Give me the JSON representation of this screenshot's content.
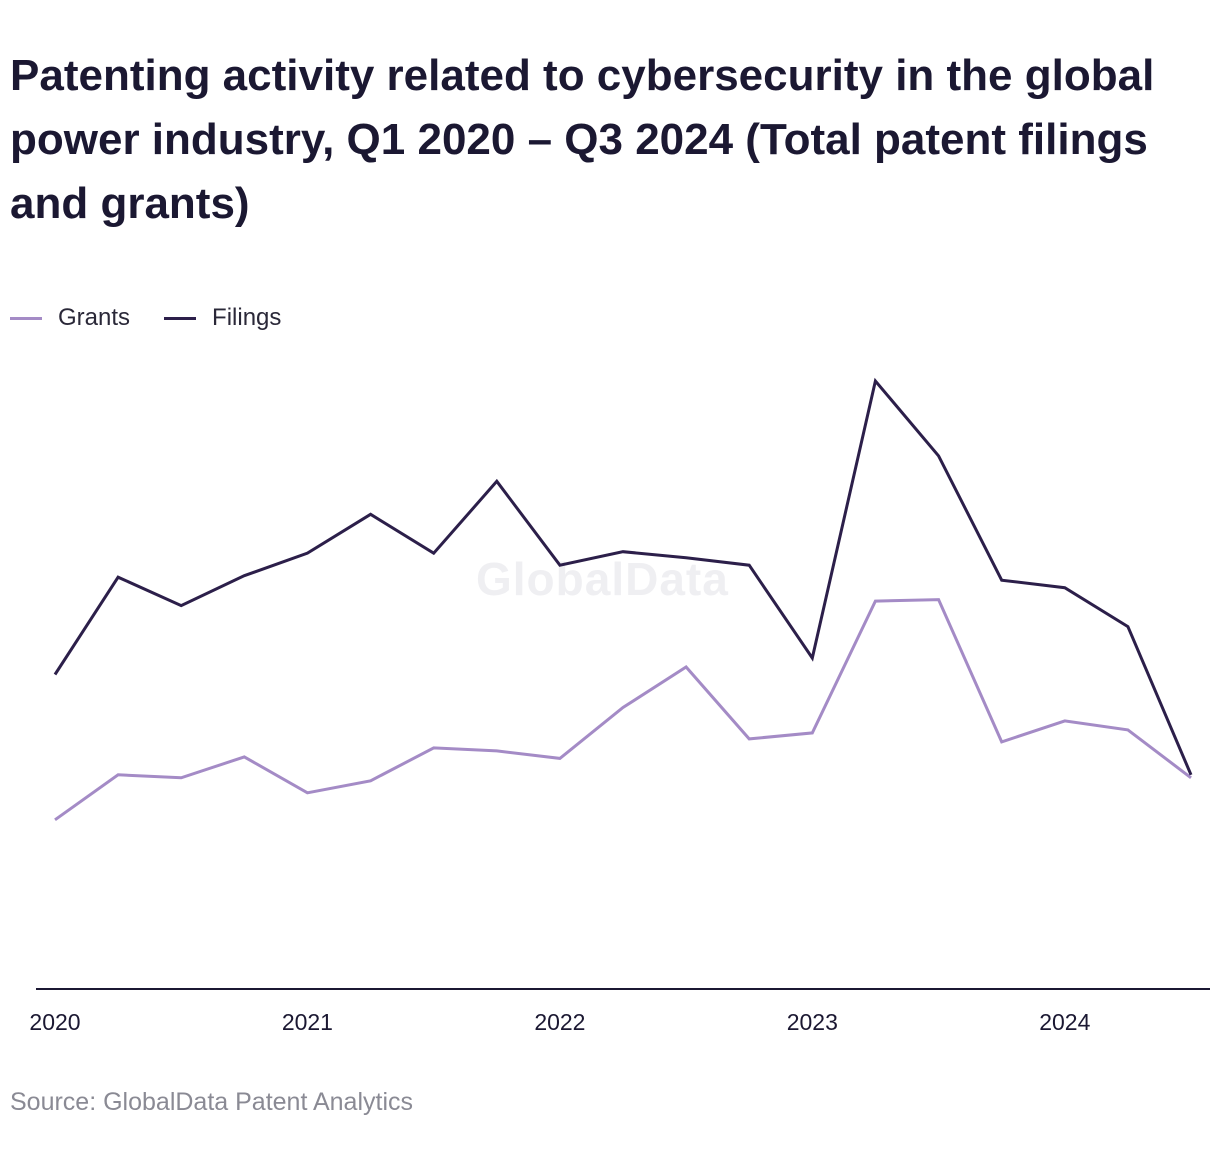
{
  "title": "Patenting activity related to cybersecurity in the global power industry, Q1 2020 – Q3 2024 (Total patent filings and grants)",
  "source": "Source: GlobalData Patent Analytics",
  "watermark": "GlobalData",
  "colors": {
    "grants": "#a48bc6",
    "filings": "#2c1f4a",
    "axis": "#1b1832",
    "text": "#1b1832"
  },
  "chart_data": {
    "type": "line",
    "title": "Patenting activity related to cybersecurity in the global power industry, Q1 2020 – Q3 2024 (Total patent filings and grants)",
    "x": [
      "Q1 2020",
      "Q2 2020",
      "Q3 2020",
      "Q4 2020",
      "Q1 2021",
      "Q2 2021",
      "Q3 2021",
      "Q4 2021",
      "Q1 2022",
      "Q2 2022",
      "Q3 2022",
      "Q4 2022",
      "Q1 2023",
      "Q2 2023",
      "Q3 2023",
      "Q4 2023",
      "Q1 2024",
      "Q2 2024",
      "Q3 2024"
    ],
    "xticks": [
      {
        "label": "2020",
        "index": 0
      },
      {
        "label": "2021",
        "index": 4
      },
      {
        "label": "2022",
        "index": 8
      },
      {
        "label": "2023",
        "index": 12
      },
      {
        "label": "2024",
        "index": 16
      }
    ],
    "ylim": [
      0,
      410
    ],
    "grid": false,
    "legend_position": "top-left",
    "series": [
      {
        "name": "Grants",
        "color": "#a48bc6",
        "values": [
          113,
          143,
          141,
          155,
          131,
          139,
          161,
          159,
          154,
          188,
          215,
          167,
          171,
          259,
          260,
          165,
          179,
          173,
          141
        ]
      },
      {
        "name": "Filings",
        "color": "#2c1f4a",
        "values": [
          210,
          275,
          256,
          276,
          291,
          317,
          291,
          339,
          283,
          292,
          288,
          283,
          221,
          406,
          356,
          273,
          268,
          242,
          143
        ]
      }
    ]
  }
}
